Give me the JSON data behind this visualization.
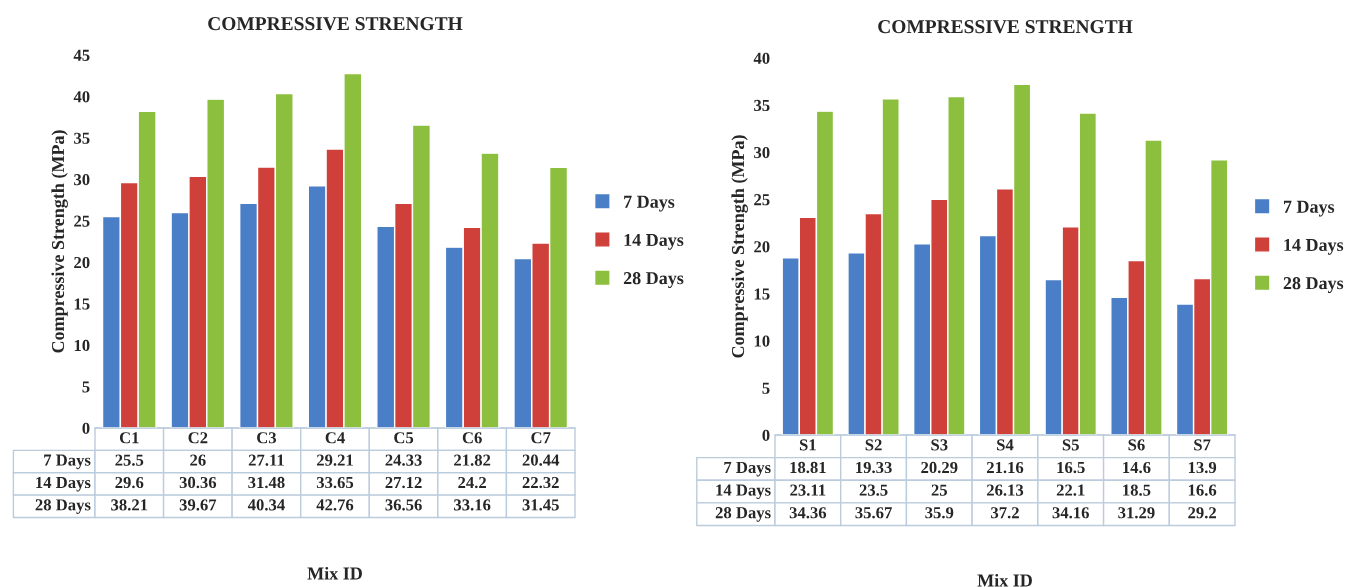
{
  "chart_data": [
    {
      "type": "bar",
      "title": "COMPRESSIVE STRENGTH",
      "xlabel": "Mix ID",
      "ylabel": "Compressive Strength (MPa)",
      "categories": [
        "C1",
        "C2",
        "C3",
        "C4",
        "C5",
        "C6",
        "C7"
      ],
      "ylim": [
        0,
        45
      ],
      "yticks": [
        0,
        5,
        10,
        15,
        20,
        25,
        30,
        35,
        40,
        45
      ],
      "grid": false,
      "legend": "right",
      "data_labels": true,
      "series": [
        {
          "name": "7 Days",
          "color": "#4a7fc8",
          "values": [
            25.5,
            26,
            27.11,
            29.21,
            24.33,
            21.82,
            20.44
          ]
        },
        {
          "name": "14 Days",
          "color": "#d0403a",
          "values": [
            29.6,
            30.36,
            31.48,
            33.65,
            27.12,
            24.2,
            22.32
          ]
        },
        {
          "name": "28 Days",
          "color": "#8cbf3e",
          "values": [
            38.21,
            39.67,
            40.34,
            42.76,
            36.56,
            33.16,
            31.45
          ]
        }
      ]
    },
    {
      "type": "bar",
      "title": "COMPRESSIVE STRENGTH",
      "xlabel": "Mix ID",
      "ylabel": "Compressive Strength (MPa)",
      "categories": [
        "S1",
        "S2",
        "S3",
        "S4",
        "S5",
        "S6",
        "S7"
      ],
      "ylim": [
        0,
        40
      ],
      "yticks": [
        0,
        5,
        10,
        15,
        20,
        25,
        30,
        35,
        40
      ],
      "grid": false,
      "legend": "right",
      "data_labels": true,
      "series": [
        {
          "name": "7 Days",
          "color": "#4a7fc8",
          "values": [
            18.81,
            19.33,
            20.29,
            21.16,
            16.5,
            14.6,
            13.9
          ]
        },
        {
          "name": "14 Days",
          "color": "#d0403a",
          "values": [
            23.11,
            23.5,
            25,
            26.13,
            22.1,
            18.5,
            16.6
          ]
        },
        {
          "name": "28 Days",
          "color": "#8cbf3e",
          "values": [
            34.36,
            35.67,
            35.9,
            37.2,
            34.16,
            31.29,
            29.2
          ]
        }
      ]
    }
  ]
}
